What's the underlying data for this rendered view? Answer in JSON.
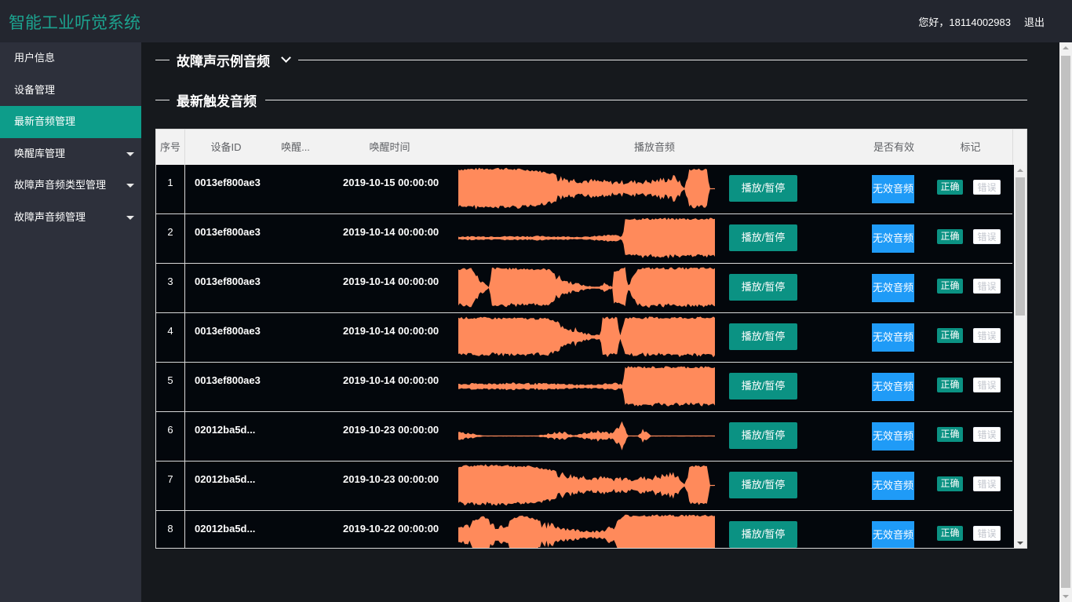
{
  "header": {
    "title": "智能工业听觉系统",
    "greeting": "您好，18114002983",
    "logout": "退出"
  },
  "sidebar": {
    "items": [
      {
        "label": "用户信息",
        "active": false,
        "expandable": false
      },
      {
        "label": "设备管理",
        "active": false,
        "expandable": false
      },
      {
        "label": "最新音频管理",
        "active": true,
        "expandable": false
      },
      {
        "label": "唤醒库管理",
        "active": false,
        "expandable": true
      },
      {
        "label": "故障声音频类型管理",
        "active": false,
        "expandable": true
      },
      {
        "label": "故障声音频管理",
        "active": false,
        "expandable": true
      }
    ]
  },
  "sections": {
    "fault_samples": "故障声示例音频",
    "latest": "最新触发音频"
  },
  "table": {
    "columns": [
      "序号",
      "设备ID",
      "唤醒...",
      "唤醒时间",
      "播放音频",
      "是否有效",
      "标记"
    ],
    "play_label": "播放/暂停",
    "invalid_label": "无效音频",
    "correct_label": "正确",
    "wrong_label": "错误",
    "rows": [
      {
        "index": "1",
        "device_id": "0013ef800ae3",
        "time": "2019-10-15 00:00:00",
        "wave": "a"
      },
      {
        "index": "2",
        "device_id": "0013ef800ae3",
        "time": "2019-10-14 00:00:00",
        "wave": "b"
      },
      {
        "index": "3",
        "device_id": "0013ef800ae3",
        "time": "2019-10-14 00:00:00",
        "wave": "c"
      },
      {
        "index": "4",
        "device_id": "0013ef800ae3",
        "time": "2019-10-14 00:00:00",
        "wave": "d"
      },
      {
        "index": "5",
        "device_id": "0013ef800ae3",
        "time": "2019-10-14 00:00:00",
        "wave": "e"
      },
      {
        "index": "6",
        "device_id": "02012ba5d...",
        "time": "2019-10-23 00:00:00",
        "wave": "f"
      },
      {
        "index": "7",
        "device_id": "02012ba5d...",
        "time": "2019-10-23 00:00:00",
        "wave": "a"
      },
      {
        "index": "8",
        "device_id": "02012ba5d...",
        "time": "2019-10-22 00:00:00",
        "wave": "g"
      }
    ]
  },
  "colors": {
    "accent": "#0d9d8a",
    "header_bg": "#23262f",
    "sidebar_bg": "#2d303b",
    "waveform": "#ff8a5b",
    "invalid_button": "#1f9bf7"
  }
}
